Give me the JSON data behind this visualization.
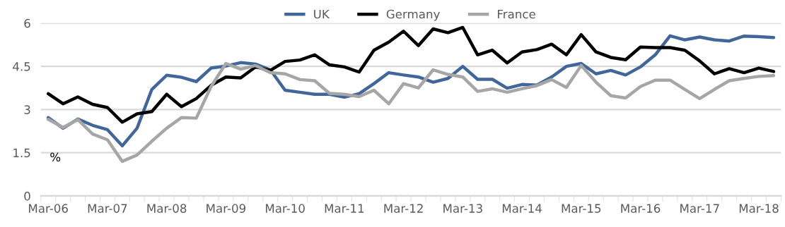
{
  "chart_data": {
    "type": "line",
    "categories": [
      "Mar-06",
      null,
      null,
      null,
      "Mar-07",
      null,
      null,
      null,
      "Mar-08",
      null,
      null,
      null,
      "Mar-09",
      null,
      null,
      null,
      "Mar-10",
      null,
      null,
      null,
      "Mar-11",
      null,
      null,
      null,
      "Mar-12",
      null,
      null,
      null,
      "Mar-13",
      null,
      null,
      null,
      "Mar-14",
      null,
      null,
      null,
      "Mar-15",
      null,
      null,
      null,
      "Mar-16",
      null,
      null,
      null,
      "Mar-17",
      null,
      null,
      null,
      "Mar-18",
      null
    ],
    "series": [
      {
        "name": "UK",
        "color": "#41669a",
        "values": [
          2.72,
          2.35,
          2.67,
          2.45,
          2.3,
          1.74,
          2.35,
          3.7,
          4.19,
          4.12,
          3.97,
          4.44,
          4.51,
          4.63,
          4.58,
          4.38,
          3.67,
          3.6,
          3.53,
          3.53,
          3.43,
          3.55,
          3.9,
          4.28,
          4.2,
          4.13,
          3.95,
          4.08,
          4.5,
          4.05,
          4.05,
          3.74,
          3.87,
          3.85,
          4.13,
          4.5,
          4.6,
          4.24,
          4.36,
          4.2,
          4.48,
          4.9,
          5.56,
          5.42,
          5.52,
          5.42,
          5.38,
          5.55,
          5.53,
          5.5
        ]
      },
      {
        "name": "Germany",
        "color": "#000000",
        "values": [
          3.55,
          3.2,
          3.44,
          3.18,
          3.07,
          2.56,
          2.85,
          2.93,
          3.53,
          3.1,
          3.38,
          3.84,
          4.13,
          4.1,
          4.48,
          4.36,
          4.67,
          4.72,
          4.9,
          4.55,
          4.48,
          4.3,
          5.06,
          5.34,
          5.72,
          5.22,
          5.8,
          5.67,
          5.85,
          4.9,
          5.06,
          4.62,
          5.0,
          5.08,
          5.27,
          4.9,
          5.6,
          5.0,
          4.81,
          4.73,
          5.17,
          5.15,
          5.15,
          5.06,
          4.69,
          4.24,
          4.42,
          4.28,
          4.44,
          4.32
        ]
      },
      {
        "name": "France",
        "color": "#a6a6a6",
        "values": [
          2.66,
          2.38,
          2.65,
          2.15,
          1.95,
          1.2,
          1.42,
          1.9,
          2.35,
          2.72,
          2.7,
          3.8,
          4.6,
          4.4,
          4.53,
          4.28,
          4.24,
          4.04,
          4.0,
          3.56,
          3.53,
          3.45,
          3.67,
          3.2,
          3.9,
          3.75,
          4.38,
          4.22,
          4.13,
          3.63,
          3.72,
          3.6,
          3.72,
          3.83,
          4.04,
          3.77,
          4.53,
          3.95,
          3.48,
          3.4,
          3.8,
          4.02,
          4.02,
          3.7,
          3.38,
          3.7,
          4.0,
          4.08,
          4.15,
          4.18
        ]
      }
    ],
    "ylim": [
      0,
      6
    ],
    "yticks": [
      0,
      1.5,
      3,
      4.5,
      6
    ],
    "grid": "y",
    "legend": "top",
    "line_style": "solid",
    "marker": "none",
    "annotations": [
      "%"
    ]
  }
}
